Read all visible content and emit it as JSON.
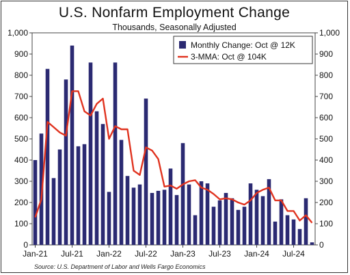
{
  "chart_data": {
    "type": "bar",
    "title": "U.S. Nonfarm Employment Change",
    "subtitle": "Thousands, Seasonally Adjusted",
    "source": "Source: U.S. Department of Labor and Wells Fargo Economics",
    "ylim": [
      0,
      1000
    ],
    "yticks": [
      "0",
      "100",
      "200",
      "300",
      "400",
      "500",
      "600",
      "700",
      "800",
      "900",
      "1,000"
    ],
    "xtick_labels": [
      "Jan-21",
      "Jul-21",
      "Jan-22",
      "Jul-22",
      "Jan-23",
      "Jul-23",
      "Jan-24",
      "Jul-24"
    ],
    "legend_position": "top-right",
    "bar_color": "#2b2a72",
    "line_color": "#e0321e",
    "x": [
      "Jan-21",
      "Feb-21",
      "Mar-21",
      "Apr-21",
      "May-21",
      "Jun-21",
      "Jul-21",
      "Aug-21",
      "Sep-21",
      "Oct-21",
      "Nov-21",
      "Dec-21",
      "Jan-22",
      "Feb-22",
      "Mar-22",
      "Apr-22",
      "May-22",
      "Jun-22",
      "Jul-22",
      "Aug-22",
      "Sep-22",
      "Oct-22",
      "Nov-22",
      "Dec-22",
      "Jan-23",
      "Feb-23",
      "Mar-23",
      "Apr-23",
      "May-23",
      "Jun-23",
      "Jul-23",
      "Aug-23",
      "Sep-23",
      "Oct-23",
      "Nov-23",
      "Dec-23",
      "Jan-24",
      "Feb-24",
      "Mar-24",
      "Apr-24",
      "May-24",
      "Jun-24",
      "Jul-24",
      "Aug-24",
      "Sep-24",
      "Oct-24"
    ],
    "series": [
      {
        "name": "Monthly Change: Oct @ 12K",
        "kind": "bar",
        "values": [
          400,
          525,
          830,
          315,
          450,
          780,
          940,
          465,
          475,
          860,
          630,
          570,
          250,
          860,
          495,
          325,
          270,
          285,
          690,
          245,
          255,
          260,
          360,
          235,
          480,
          285,
          140,
          300,
          290,
          180,
          210,
          245,
          220,
          165,
          180,
          290,
          260,
          230,
          310,
          110,
          215,
          140,
          120,
          75,
          220,
          12
        ]
      },
      {
        "name": "3-MMA: Oct @ 104K",
        "kind": "line",
        "values": [
          130,
          215,
          580,
          555,
          530,
          515,
          725,
          725,
          630,
          610,
          665,
          690,
          500,
          560,
          545,
          545,
          350,
          330,
          460,
          445,
          405,
          275,
          280,
          265,
          285,
          300,
          305,
          270,
          260,
          240,
          215,
          220,
          215,
          200,
          190,
          210,
          245,
          260,
          270,
          210,
          210,
          160,
          160,
          115,
          140,
          104
        ]
      }
    ]
  }
}
